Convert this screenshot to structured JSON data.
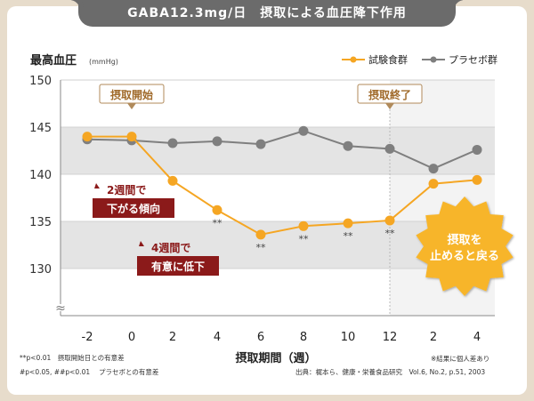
{
  "title": "GABA12.3mg/日　摂取による血圧降下作用",
  "chart_data": {
    "type": "line",
    "ylabel": "最高血圧",
    "yunit": "(mmHg)",
    "xlabel": "摂取期間（週）",
    "categories": [
      "-2",
      "0",
      "2",
      "4",
      "6",
      "8",
      "10",
      "12",
      "2",
      "4"
    ],
    "ylim": [
      125,
      150
    ],
    "yticks": [
      130,
      135,
      140,
      145,
      150
    ],
    "series": [
      {
        "name": "試験食群",
        "color": "#f5a623",
        "values": [
          144.0,
          144.0,
          139.3,
          136.2,
          133.6,
          134.5,
          134.8,
          135.1,
          139.0,
          139.4
        ],
        "marks": [
          "",
          "",
          "",
          "**",
          "**",
          "**",
          "**",
          "**",
          "",
          ""
        ]
      },
      {
        "name": "プラセボ群",
        "color": "#7f7f7f",
        "values": [
          143.7,
          143.6,
          143.3,
          143.5,
          143.2,
          144.6,
          143.0,
          142.7,
          140.6,
          142.6
        ]
      }
    ],
    "grid": "bands",
    "legend_position": "top-right"
  },
  "annotations": {
    "start": "摂取開始",
    "end": "摂取終了",
    "note_2w_line1": "2週間で",
    "note_2w_line2": "下がる傾向",
    "note_4w_line1": "4週間で",
    "note_4w_line2": "有意に低下",
    "return_line1": "摂取を",
    "return_line2": "止めると戻る",
    "break_symbol": "≈"
  },
  "footnotes": {
    "left1": "**p<0.01　摂取開始日との有意差",
    "left2": "#p<0.05, ##p<0.01　 プラセボとの有意差",
    "right1": "※結果に個人差あり",
    "right2": "出典：梶本ら、健康・栄養食品研究　Vol.6, No.2, p.51, 2003"
  }
}
